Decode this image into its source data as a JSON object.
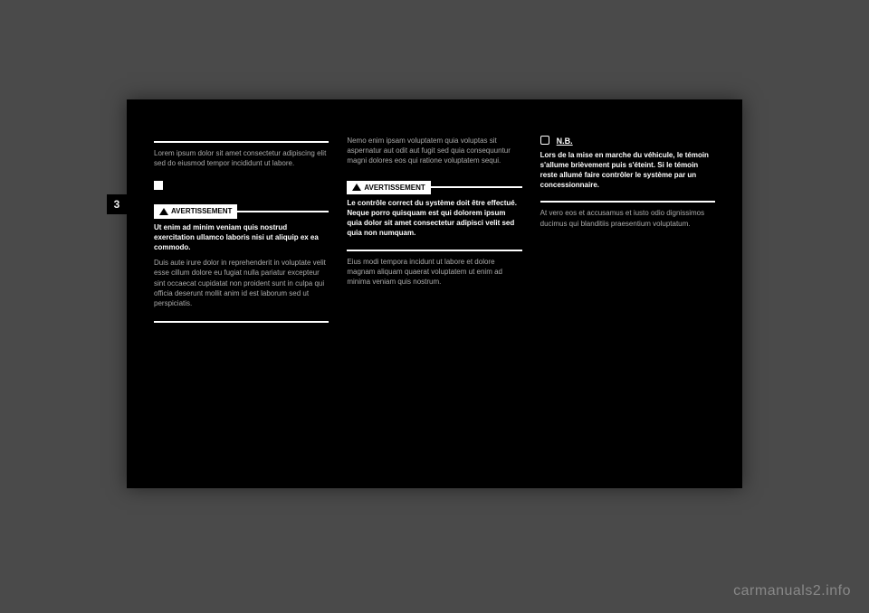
{
  "page": {
    "tab_number": "3",
    "watermark": "carmanuals2.info",
    "col1": {
      "header_line": " ",
      "body1": "Lorem ipsum dolor sit amet consectetur adipiscing elit sed do eiusmod tempor incididunt ut labore.",
      "warning_label": "AVERTISSEMENT",
      "warning_text": "Ut enim ad minim veniam quis nostrud exercitation ullamco laboris nisi ut aliquip ex ea commodo.",
      "body2": "Duis aute irure dolor in reprehenderit in voluptate velit esse cillum dolore eu fugiat nulla pariatur excepteur sint occaecat cupidatat non proident sunt in culpa qui officia deserunt mollit anim id est laborum sed ut perspiciatis."
    },
    "col2": {
      "body1": "Nemo enim ipsam voluptatem quia voluptas sit aspernatur aut odit aut fugit sed quia consequuntur magni dolores eos qui ratione voluptatem sequi.",
      "warning_label": "AVERTISSEMENT",
      "warning_text": "Le contrôle correct du système doit être effectué. Neque porro quisquam est qui dolorem ipsum quia dolor sit amet consectetur adipisci velit sed quia non numquam.",
      "body2": "Eius modi tempora incidunt ut labore et dolore magnam aliquam quaerat voluptatem ut enim ad minima veniam quis nostrum."
    },
    "col3": {
      "note_label": "N.B.",
      "note_text": "Lors de la mise en marche du véhicule, le témoin s'allume brièvement puis s'éteint. Si le témoin reste allumé faire contrôler le système par un concessionnaire.",
      "body1": "At vero eos et accusamus et iusto odio dignissimos ducimus qui blanditiis praesentium voluptatum."
    }
  }
}
